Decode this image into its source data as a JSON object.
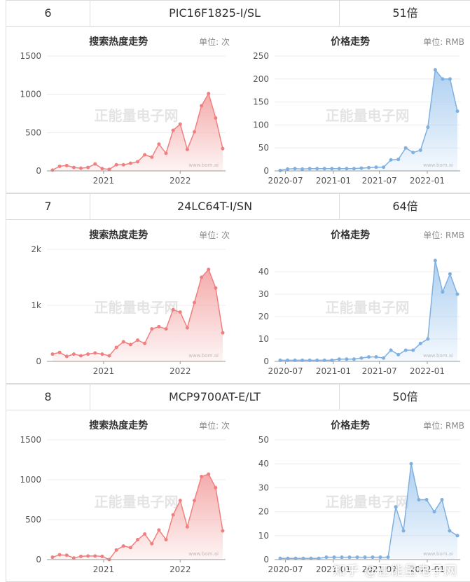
{
  "rows": [
    {
      "index": "6",
      "part": "PIC16F1825-I/SL",
      "multiple": "51倍",
      "search": {
        "title": "搜索热度走势",
        "unit": "单位: 次",
        "watermark": "正能量电子网",
        "site": "www.bom.ai",
        "chart_data": {
          "type": "area",
          "yticks": [
            "0",
            "500",
            "1000",
            "1500"
          ],
          "ylim": [
            0,
            1500
          ],
          "xticks": [
            "2021",
            "2022"
          ],
          "values": [
            10,
            60,
            70,
            45,
            35,
            45,
            90,
            30,
            20,
            80,
            80,
            100,
            120,
            210,
            180,
            350,
            230,
            530,
            610,
            280,
            510,
            850,
            1010,
            690,
            290
          ]
        }
      },
      "price": {
        "title": "价格走势",
        "unit": "单位: RMB",
        "watermark": "正能量电子网",
        "site": "www.bom.ai",
        "chart_data": {
          "type": "area",
          "yticks": [
            "0",
            "50",
            "100",
            "150",
            "200",
            "250"
          ],
          "ylim": [
            0,
            250
          ],
          "xticks": [
            "2020-07",
            "2021-01",
            "2021-07",
            "2022-01"
          ],
          "values": [
            1,
            4,
            5,
            4,
            5,
            5,
            5,
            5,
            5,
            5,
            5,
            6,
            7,
            8,
            8,
            24,
            25,
            50,
            40,
            45,
            95,
            220,
            200,
            200,
            130
          ]
        }
      }
    },
    {
      "index": "7",
      "part": "24LC64T-I/SN",
      "multiple": "64倍",
      "search": {
        "title": "搜索热度走势",
        "unit": "单位: 次",
        "watermark": "正能量电子网",
        "site": "www.bom.ai",
        "chart_data": {
          "type": "area",
          "yticks": [
            "0",
            "1k",
            "2k"
          ],
          "ylim": [
            0,
            2000
          ],
          "xticks": [
            "2021",
            "2022"
          ],
          "values": [
            130,
            160,
            90,
            130,
            100,
            130,
            150,
            130,
            100,
            250,
            350,
            300,
            380,
            320,
            580,
            620,
            580,
            920,
            880,
            600,
            1050,
            1500,
            1640,
            1310,
            510
          ]
        }
      },
      "price": {
        "title": "价格走势",
        "unit": "单位: RMB",
        "watermark": "正能量电子网",
        "site": "www.bom.ai",
        "chart_data": {
          "type": "area",
          "yticks": [
            "0",
            "10",
            "20",
            "30",
            "40"
          ],
          "ylim": [
            0,
            50
          ],
          "xticks": [
            "2020-07",
            "2021-01",
            "2021-07",
            "2022-01"
          ],
          "values": [
            0.5,
            0.5,
            0.5,
            0.5,
            0.5,
            0.5,
            0.5,
            0.5,
            1,
            1,
            1,
            1.5,
            2,
            2,
            1.5,
            5,
            3,
            5,
            5,
            8,
            10,
            45,
            31,
            39,
            30
          ]
        }
      }
    },
    {
      "index": "8",
      "part": "MCP9700AT-E/LT",
      "multiple": "50倍",
      "search": {
        "title": "搜索热度走势",
        "unit": "单位: 次",
        "watermark": "正能量电子网",
        "site": "www.bom.ai",
        "chart_data": {
          "type": "area",
          "yticks": [
            "0",
            "500",
            "1000",
            "1500"
          ],
          "ylim": [
            0,
            1500
          ],
          "xticks": [
            "2021",
            "2022"
          ],
          "values": [
            30,
            60,
            55,
            20,
            40,
            45,
            45,
            40,
            0,
            120,
            170,
            150,
            250,
            320,
            200,
            370,
            250,
            560,
            740,
            410,
            740,
            1040,
            1070,
            900,
            360
          ]
        }
      },
      "price": {
        "title": "价格走势",
        "unit": "单位: RMB",
        "watermark": "正能量电子网",
        "site": "www.bom.ai",
        "chart_data": {
          "type": "area",
          "yticks": [
            "0",
            "10",
            "20",
            "30",
            "40",
            "50"
          ],
          "ylim": [
            0,
            50
          ],
          "xticks": [
            "2020-07",
            "2021-01",
            "2021-07",
            "2022-01"
          ],
          "values": [
            0.5,
            0.5,
            0.5,
            0.5,
            0.5,
            0.5,
            1,
            1,
            1,
            1,
            1,
            1,
            1,
            1,
            1,
            22,
            12,
            40,
            25,
            25,
            20,
            25,
            12,
            10
          ]
        }
      }
    }
  ],
  "footer_watermark": "知乎 @正能量电子网",
  "colors": {
    "search_line": "#f08080",
    "search_fill": "#f4a7a7",
    "price_line": "#7fb0e0",
    "price_fill": "#a9cdf0",
    "border": "#dcdcdc"
  }
}
